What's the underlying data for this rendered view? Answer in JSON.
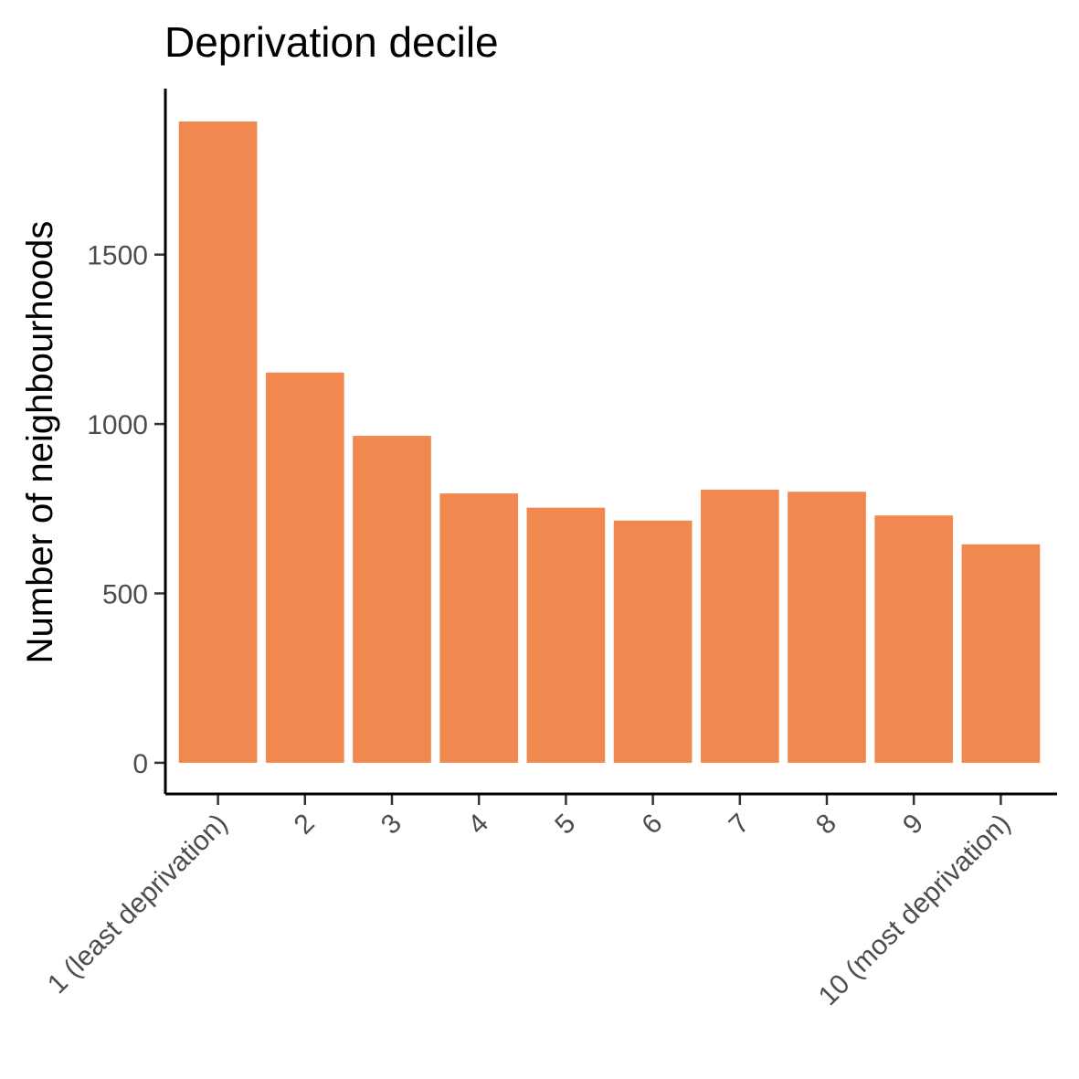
{
  "chart_data": {
    "type": "bar",
    "title": "Deprivation decile",
    "xlabel": "",
    "ylabel": "Number of neighbourhoods",
    "categories": [
      "1 (least deprivation)",
      "2",
      "3",
      "4",
      "5",
      "6",
      "7",
      "8",
      "9",
      "10 (most deprivation)"
    ],
    "values": [
      1893,
      1152,
      965,
      795,
      753,
      715,
      806,
      800,
      730,
      645
    ],
    "ylim": [
      -92,
      1990
    ],
    "yticks": [
      0,
      500,
      1000,
      1500
    ],
    "ytick_labels": [
      "0",
      "500",
      "1000",
      "1500"
    ],
    "bar_color": "#f0884f",
    "grid": false,
    "legend": "none"
  }
}
